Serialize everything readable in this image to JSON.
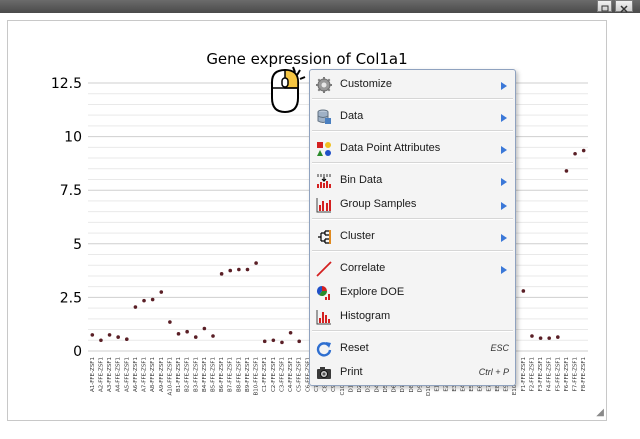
{
  "window": {
    "restore_icon": "restore-icon",
    "close_icon": "close-icon"
  },
  "chart_data": {
    "type": "scatter",
    "title": "Gene expression of Col1a1",
    "xlabel": "",
    "ylabel": "",
    "ylim": [
      0,
      12.5
    ],
    "yticks": [
      "0",
      "2.5",
      "5",
      "7.5",
      "10",
      "12.5"
    ],
    "grid": true,
    "marker_color": "#5a1f26",
    "categories": [
      "A1-FFE-ZSF1",
      "A2-FFE-ZSF1",
      "A3-FFE-ZSF1",
      "A4-FFE-ZSF1",
      "A5-FFE-ZSF1",
      "A6-FFE-ZSF1",
      "A7-FFE-ZSF1",
      "A8-FFE-ZSF1",
      "A9-FFE-ZSF1",
      "A10-FFE-ZSF1",
      "B1-FFE-ZSF1",
      "B2-FFE-ZSF1",
      "B3-FFE-ZSF1",
      "B4-FFE-ZSF1",
      "B5-FFE-ZSF1",
      "B6-FFE-ZSF1",
      "B7-FFE-ZSF1",
      "B8-FFE-ZSF1",
      "B9-FFE-ZSF1",
      "B10-FFE-ZSF1",
      "C1-FFE-ZSF1",
      "C2-FFE-ZSF1",
      "C3-FFE-ZSF1",
      "C4-FFE-ZSF1",
      "C5-FFE-ZSF1",
      "C6-FFE-ZSF1",
      "C7-FFE-ZSF1",
      "C8-FFE-ZSF1",
      "C9-FFE-ZSF1",
      "C10-FFE-ZSF1",
      "D1-FFE-ZSF1",
      "D2-FFE-ZSF1",
      "D3-FFE-ZSF1",
      "D4-FFE-ZSF1",
      "D5-FFE-ZSF1",
      "D6-FFE-ZSF1",
      "D7-FFE-ZSF1",
      "D8-FFE-ZSF1",
      "D9-FFE-ZSF1",
      "D10-FFE-ZSF1",
      "E1-FFE-ZSF1",
      "E2-FFE-ZSF1",
      "E3-FFE-ZSF1",
      "E4-FFE-ZSF1",
      "E5-FFE-ZSF1",
      "E6-FFE-ZSF1",
      "E7-FFE-ZSF1",
      "E8-FFE-ZSF1",
      "E9-FFE-ZSF1",
      "E10-FFE-ZSF1",
      "F1-FFE-ZSF1",
      "F2-FFE-ZSF1",
      "F3-FFE-ZSF1",
      "F4-FFE-ZSF1",
      "F5-FFE-ZSF1",
      "F6-FFE-ZSF1",
      "F7-FFE-ZSF1",
      "F8-FFE-ZSF1"
    ],
    "values": [
      0.75,
      0.5,
      0.75,
      0.65,
      0.55,
      2.05,
      2.35,
      2.4,
      2.75,
      1.35,
      0.8,
      0.9,
      0.65,
      1.05,
      0.7,
      3.6,
      3.75,
      3.8,
      3.8,
      4.1,
      0.45,
      0.5,
      0.4,
      0.85,
      0.45,
      null,
      null,
      null,
      null,
      null,
      null,
      null,
      null,
      null,
      null,
      null,
      null,
      null,
      null,
      null,
      null,
      null,
      null,
      null,
      null,
      null,
      null,
      null,
      null,
      null,
      2.8,
      0.7,
      0.6,
      0.6,
      0.65,
      8.4,
      9.2,
      9.35
    ]
  },
  "menu": {
    "items": [
      {
        "label": "Customize",
        "icon": "gear-icon",
        "submenu": true,
        "shortcut": ""
      },
      {
        "label": "Data",
        "icon": "database-icon",
        "submenu": true,
        "shortcut": ""
      },
      {
        "label": "Data Point Attributes",
        "icon": "data-point-attributes-icon",
        "submenu": true,
        "shortcut": ""
      },
      {
        "label": "Bin Data",
        "icon": "bin-data-icon",
        "submenu": true,
        "shortcut": ""
      },
      {
        "label": "Group Samples",
        "icon": "group-samples-icon",
        "submenu": true,
        "shortcut": ""
      },
      {
        "label": "Cluster",
        "icon": "cluster-tree-icon",
        "submenu": true,
        "shortcut": ""
      },
      {
        "label": "Correlate",
        "icon": "correlate-line-icon",
        "submenu": true,
        "shortcut": ""
      },
      {
        "label": "Explore DOE",
        "icon": "explore-doe-icon",
        "submenu": false,
        "shortcut": ""
      },
      {
        "label": "Histogram",
        "icon": "histogram-icon",
        "submenu": false,
        "shortcut": ""
      },
      {
        "label": "Reset",
        "icon": "reset-refresh-icon",
        "submenu": false,
        "shortcut": "ESC"
      },
      {
        "label": "Print",
        "icon": "camera-icon",
        "submenu": false,
        "shortcut": "Ctrl + P"
      }
    ]
  }
}
